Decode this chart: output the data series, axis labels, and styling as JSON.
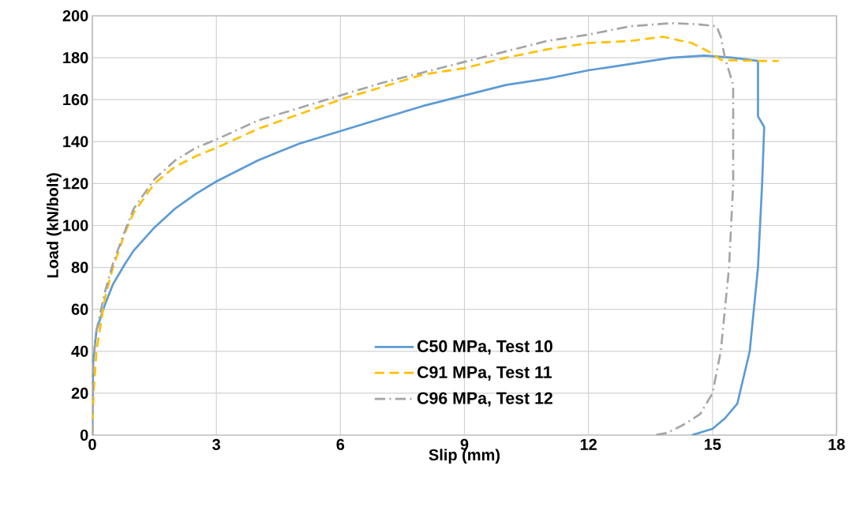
{
  "chart_data": {
    "type": "line",
    "xlabel": "Slip (mm)",
    "ylabel": "Load (kN/bolt)",
    "xlim": [
      0,
      18
    ],
    "xticks": [
      0,
      3,
      6,
      9,
      12,
      15,
      18
    ],
    "ylim": [
      0,
      200
    ],
    "yticks": [
      0,
      20,
      40,
      60,
      80,
      100,
      120,
      140,
      160,
      180,
      200
    ],
    "grid": true,
    "legend": "bottom",
    "marker": "none",
    "series": [
      {
        "name": "C50 MPa, Test 10",
        "color": "#5b9bd5",
        "line_style": "solid",
        "x": [
          0,
          0.02,
          0.1,
          0.3,
          0.5,
          0.8,
          1.0,
          1.5,
          2.0,
          2.5,
          3,
          3.5,
          4,
          4.5,
          5,
          6,
          7,
          8,
          9,
          10,
          11,
          12,
          13,
          14,
          14.8,
          15.5,
          16.1,
          16.1,
          16.25,
          16.2,
          16.1,
          15.9,
          15.6,
          15.3,
          15,
          14.5
        ],
        "values": [
          0,
          35,
          50,
          62,
          72,
          82,
          88,
          99,
          108,
          115,
          121,
          126,
          131,
          135,
          139,
          145,
          151,
          157,
          162,
          167,
          170,
          174,
          177,
          180,
          181,
          180,
          178.5,
          152,
          147,
          120,
          80,
          40,
          15,
          8,
          3,
          0
        ]
      },
      {
        "name": "C91 MPa, Test 11",
        "color": "#ffc000",
        "line_style": "dashed",
        "x": [
          0,
          0.03,
          0.1,
          0.3,
          0.5,
          0.8,
          1,
          1.5,
          2,
          2.5,
          3,
          4,
          5,
          6,
          7,
          8,
          9,
          10,
          11,
          12,
          13,
          13.8,
          14.5,
          15,
          15.2,
          16,
          16.6
        ],
        "values": [
          0,
          20,
          40,
          65,
          80,
          97,
          106,
          120,
          128,
          133,
          137,
          146,
          153,
          160,
          166,
          172,
          175,
          180,
          184,
          187,
          188,
          190,
          187,
          182,
          179,
          178.5,
          178.5
        ]
      },
      {
        "name": "C96 MPa, Test 12",
        "color": "#a5a5a5",
        "line_style": "dashdot",
        "x": [
          0,
          0.02,
          0.1,
          0.3,
          0.5,
          0.8,
          1,
          1.5,
          2,
          2.5,
          3,
          4,
          5,
          6,
          7,
          8,
          9,
          10,
          11,
          12,
          13,
          14,
          14.6,
          15.1,
          15.2,
          15.3,
          15.5,
          15.5,
          15.4,
          15.2,
          15.0,
          14.7,
          14.3,
          13.9,
          13.6
        ],
        "values": [
          0,
          35,
          50,
          68,
          82,
          98,
          108,
          122,
          131,
          137,
          141,
          150,
          156,
          162,
          168,
          173,
          178,
          183,
          188,
          191,
          195,
          196.5,
          196,
          195,
          190,
          180,
          167,
          120,
          80,
          40,
          20,
          10,
          5,
          1,
          0
        ]
      }
    ]
  }
}
